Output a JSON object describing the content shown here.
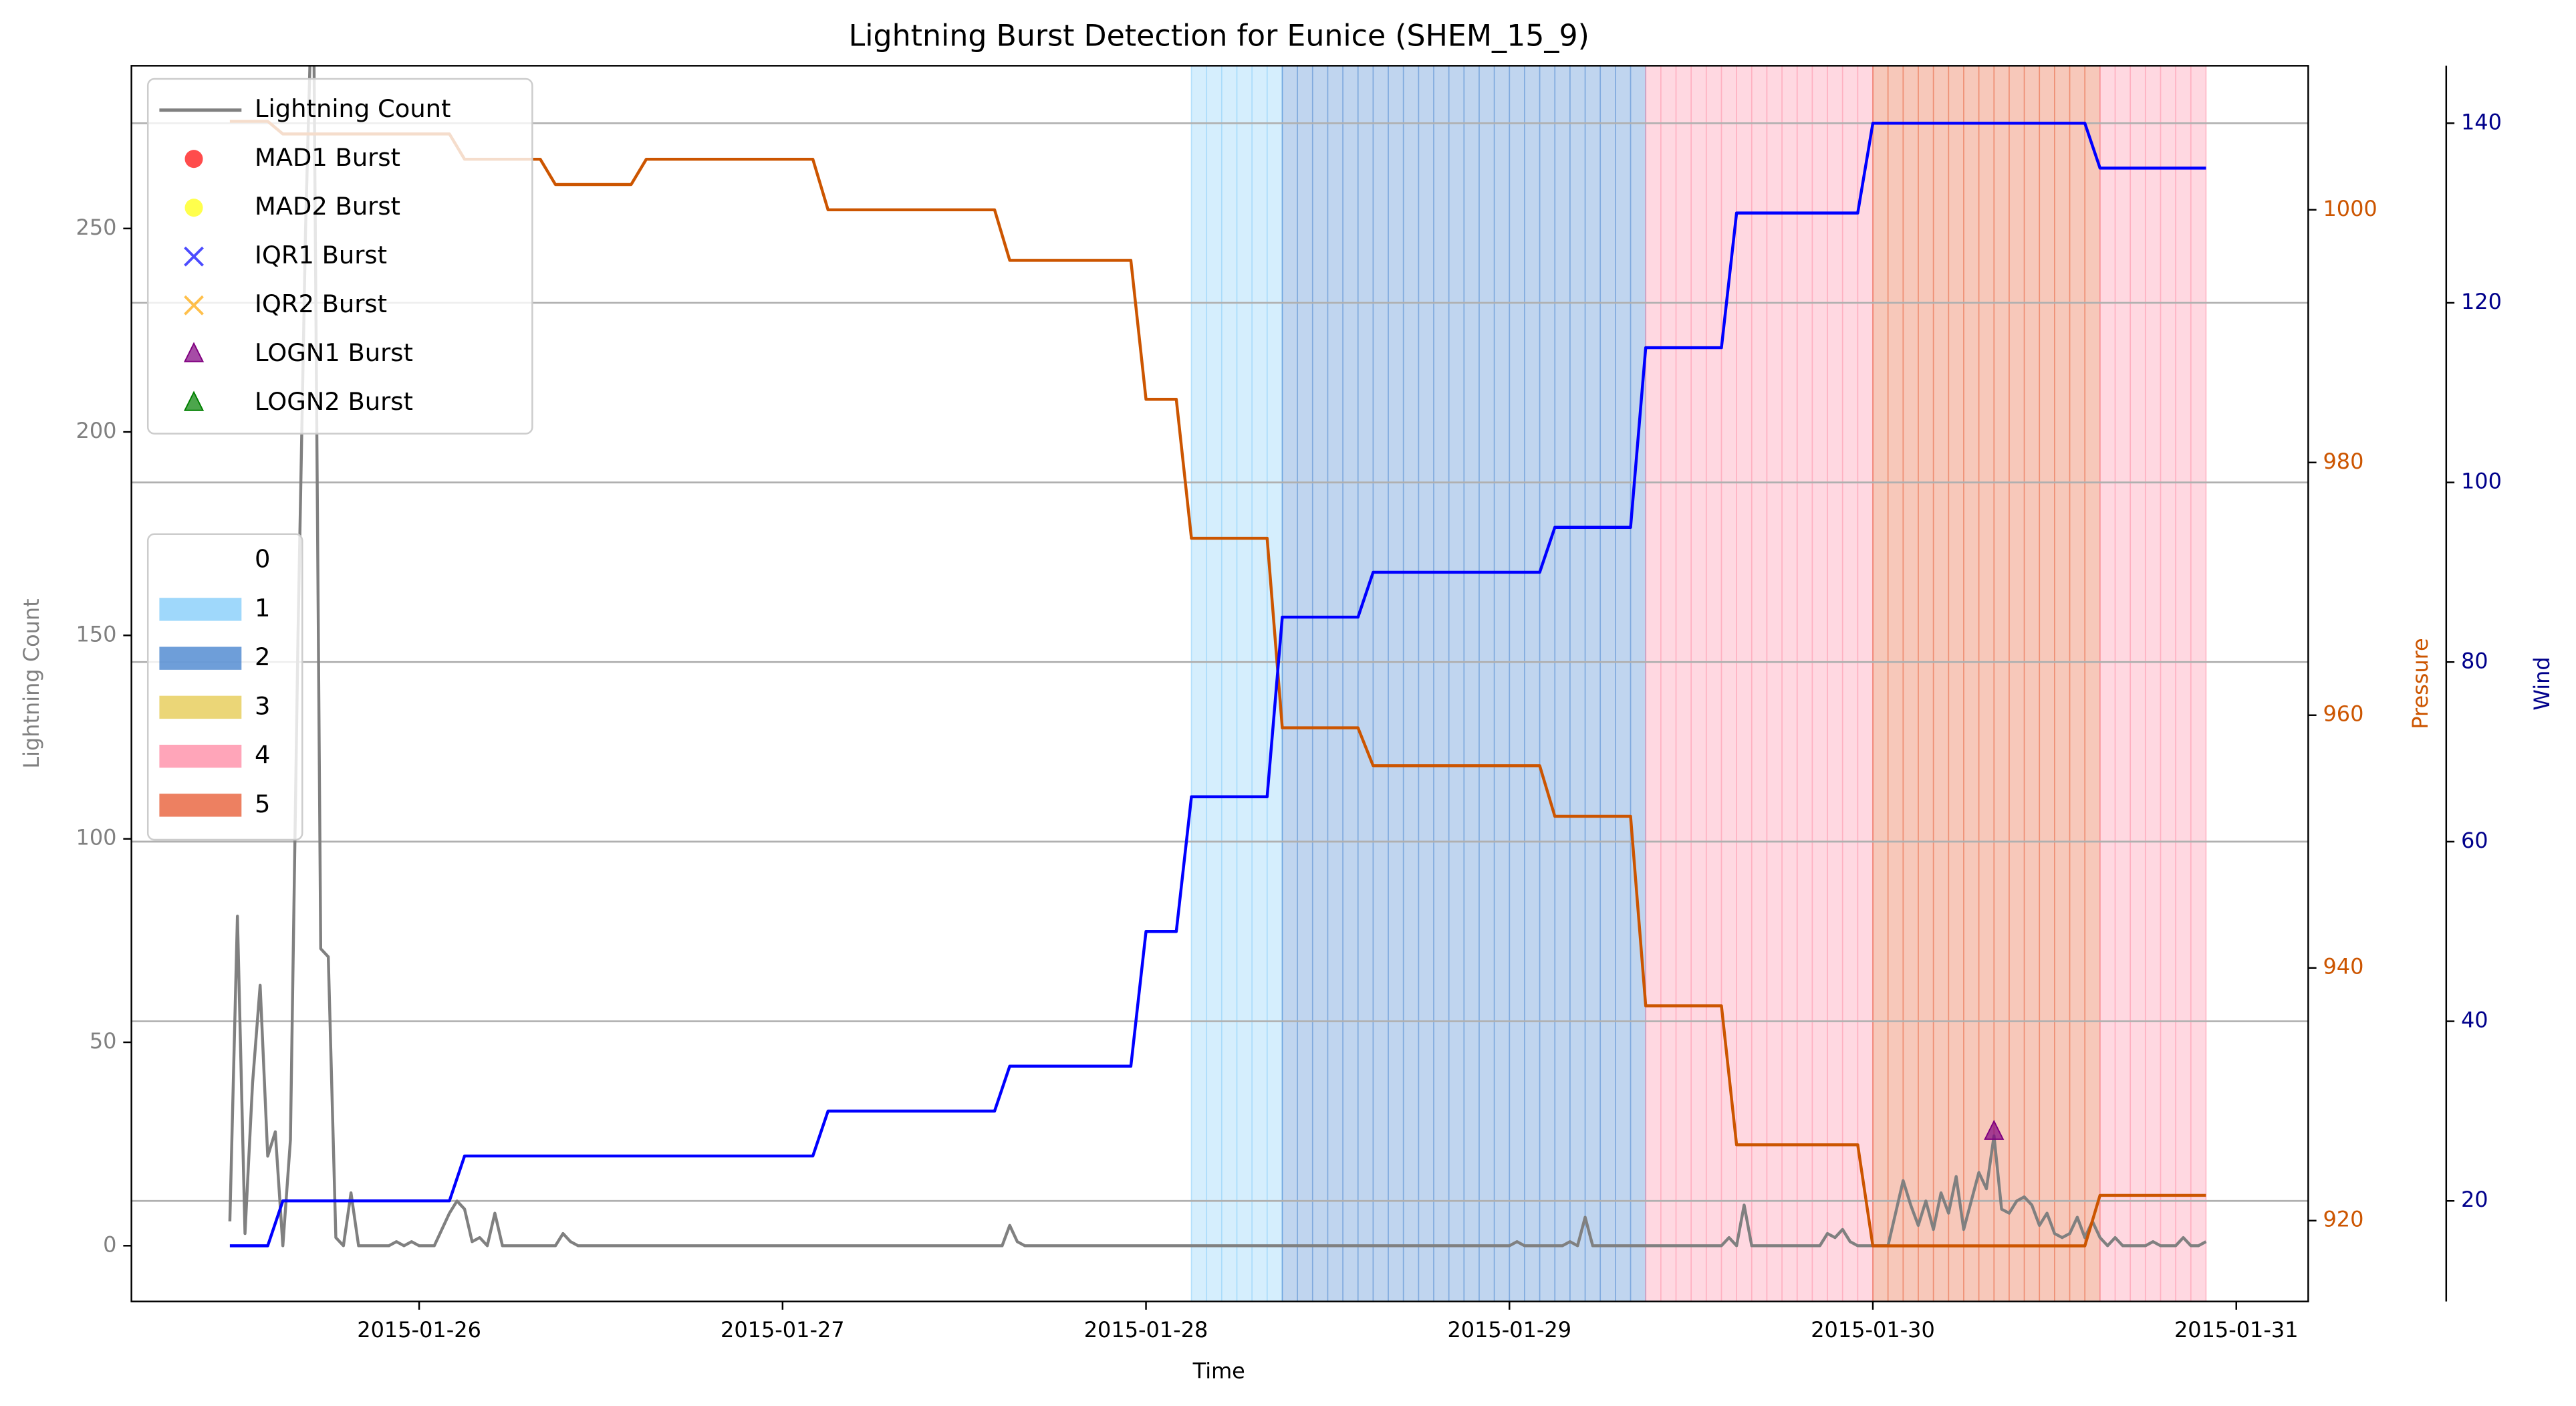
{
  "chart_data": {
    "type": "line",
    "title": "Lightning Burst Detection for Eunice (SHEM_15_9)",
    "xlabel": "Time",
    "ylabel": "Lightning Count",
    "y2label": "Pressure",
    "y3label": "Wind",
    "xlim": [
      "2015-01-25 05:00",
      "2015-01-31 04:45"
    ],
    "xticks": [
      "2015-01-26",
      "2015-01-27",
      "2015-01-28",
      "2015-01-29",
      "2015-01-30",
      "2015-01-31"
    ],
    "ylim": [
      -13.7,
      290
    ],
    "yticks": [
      0,
      50,
      100,
      150,
      200,
      250
    ],
    "y2lim": [
      913.6,
      1011.4
    ],
    "y2ticks": [
      920,
      940,
      960,
      980,
      1000
    ],
    "y3lim": [
      8.8,
      146.4
    ],
    "y3ticks": [
      20,
      40,
      60,
      80,
      100,
      120,
      140
    ],
    "ycolor": "#808080",
    "y2color": "#cc5500",
    "y3color": "#00008b",
    "grid": "y3",
    "legend": "upper left",
    "series": [
      {
        "name": "Lightning Count",
        "color": "#808080",
        "axis": "y",
        "x": [
          "2015-01-25 11:30",
          "2015-01-25 12:00",
          "2015-01-25 12:30",
          "2015-01-25 13:00",
          "2015-01-25 13:30",
          "2015-01-25 14:00",
          "2015-01-25 14:30",
          "2015-01-25 15:00",
          "2015-01-25 15:30",
          "2015-01-25 16:00",
          "2015-01-25 16:30",
          "2015-01-25 17:00",
          "2015-01-25 17:30",
          "2015-01-25 18:00",
          "2015-01-25 18:30",
          "2015-01-25 19:00",
          "2015-01-25 19:30",
          "2015-01-25 20:00",
          "2015-01-25 22:00",
          "2015-01-25 22:30",
          "2015-01-25 23:00",
          "2015-01-25 23:30",
          "2015-01-26 00:00",
          "2015-01-26 01:00",
          "2015-01-26 02:00",
          "2015-01-26 02:30",
          "2015-01-26 03:00",
          "2015-01-26 03:30",
          "2015-01-26 04:00",
          "2015-01-26 04:30",
          "2015-01-26 05:00",
          "2015-01-26 05:30",
          "2015-01-26 09:00",
          "2015-01-26 09:30",
          "2015-01-26 10:00",
          "2015-01-26 10:30",
          "2015-01-27 14:30",
          "2015-01-27 15:00",
          "2015-01-27 15:30",
          "2015-01-27 16:00",
          "2015-01-29 00:00",
          "2015-01-29 00:30",
          "2015-01-29 01:00",
          "2015-01-29 03:30",
          "2015-01-29 04:00",
          "2015-01-29 04:30",
          "2015-01-29 05:00",
          "2015-01-29 05:30",
          "2015-01-29 14:00",
          "2015-01-29 14:30",
          "2015-01-29 15:00",
          "2015-01-29 15:30",
          "2015-01-29 16:00",
          "2015-01-29 20:30",
          "2015-01-29 21:00",
          "2015-01-29 21:30",
          "2015-01-29 22:00",
          "2015-01-29 22:30",
          "2015-01-29 23:00",
          "2015-01-30 01:00",
          "2015-01-30 01:30",
          "2015-01-30 02:00",
          "2015-01-30 02:30",
          "2015-01-30 03:00",
          "2015-01-30 03:30",
          "2015-01-30 04:00",
          "2015-01-30 04:30",
          "2015-01-30 05:00",
          "2015-01-30 05:30",
          "2015-01-30 06:00",
          "2015-01-30 06:30",
          "2015-01-30 07:00",
          "2015-01-30 07:30",
          "2015-01-30 08:00",
          "2015-01-30 08:30",
          "2015-01-30 09:00",
          "2015-01-30 09:30",
          "2015-01-30 10:00",
          "2015-01-30 10:30",
          "2015-01-30 11:00",
          "2015-01-30 11:30",
          "2015-01-30 12:00",
          "2015-01-30 12:30",
          "2015-01-30 13:00",
          "2015-01-30 13:30",
          "2015-01-30 14:00",
          "2015-01-30 14:30",
          "2015-01-30 15:00",
          "2015-01-30 15:30",
          "2015-01-30 16:00",
          "2015-01-30 16:30",
          "2015-01-30 18:00",
          "2015-01-30 18:30",
          "2015-01-30 19:00",
          "2015-01-30 20:00",
          "2015-01-30 20:30",
          "2015-01-30 21:00",
          "2015-01-30 21:30",
          "2015-01-30 22:00"
        ],
        "values": [
          6,
          81,
          3,
          40,
          64,
          22,
          28,
          0,
          26,
          150,
          250,
          320,
          73,
          71,
          2,
          0,
          13,
          0,
          0,
          1,
          0,
          1,
          0,
          0,
          8,
          11,
          9,
          1,
          2,
          0,
          8,
          0,
          0,
          3,
          1,
          0,
          0,
          5,
          1,
          0,
          0,
          1,
          0,
          0,
          1,
          0,
          7,
          0,
          0,
          2,
          0,
          10,
          0,
          0,
          3,
          2,
          4,
          1,
          0,
          0,
          8,
          16,
          10,
          5,
          11,
          4,
          13,
          8,
          17,
          4,
          11,
          18,
          14,
          27,
          9,
          8,
          11,
          12,
          10,
          5,
          8,
          3,
          2,
          3,
          7,
          2,
          6,
          2,
          0,
          2,
          0,
          0,
          1,
          0,
          0,
          2,
          0,
          0,
          1
        ]
      },
      {
        "color": "#cc5500",
        "axis": "y2",
        "x": [
          "2015-01-25 11:30",
          "2015-01-25 14:00",
          "2015-01-25 15:00",
          "2015-01-26 02:00",
          "2015-01-26 03:00",
          "2015-01-26 08:00",
          "2015-01-26 09:00",
          "2015-01-26 14:00",
          "2015-01-26 15:00",
          "2015-01-27 02:00",
          "2015-01-27 03:00",
          "2015-01-27 14:00",
          "2015-01-27 15:00",
          "2015-01-27 23:00",
          "2015-01-28 00:00",
          "2015-01-28 02:00",
          "2015-01-28 03:00",
          "2015-01-28 08:00",
          "2015-01-28 09:00",
          "2015-01-28 14:00",
          "2015-01-28 15:00",
          "2015-01-29 02:00",
          "2015-01-29 03:00",
          "2015-01-29 08:00",
          "2015-01-29 09:00",
          "2015-01-29 14:00",
          "2015-01-29 15:00",
          "2015-01-29 23:00",
          "2015-01-30 00:00",
          "2015-01-30 14:00",
          "2015-01-30 15:00",
          "2015-01-30 22:00"
        ],
        "values": [
          1007,
          1007,
          1006,
          1006,
          1004,
          1004,
          1002,
          1002,
          1004,
          1004,
          1000,
          1000,
          996,
          996,
          985,
          985,
          974,
          974,
          959,
          959,
          956,
          956,
          952,
          952,
          937,
          937,
          926,
          926,
          918,
          918,
          922,
          922
        ]
      },
      {
        "color": "#0000ff",
        "axis": "y3",
        "x": [
          "2015-01-25 11:30",
          "2015-01-25 14:00",
          "2015-01-25 15:00",
          "2015-01-26 02:00",
          "2015-01-26 03:00",
          "2015-01-27 02:00",
          "2015-01-27 03:00",
          "2015-01-27 14:00",
          "2015-01-27 15:00",
          "2015-01-27 23:00",
          "2015-01-28 00:00",
          "2015-01-28 02:00",
          "2015-01-28 03:00",
          "2015-01-28 08:00",
          "2015-01-28 09:00",
          "2015-01-28 14:00",
          "2015-01-28 15:00",
          "2015-01-29 02:00",
          "2015-01-29 03:00",
          "2015-01-29 08:00",
          "2015-01-29 09:00",
          "2015-01-29 14:00",
          "2015-01-29 15:00",
          "2015-01-29 23:00",
          "2015-01-30 00:00",
          "2015-01-30 14:00",
          "2015-01-30 15:00",
          "2015-01-30 22:00"
        ],
        "values": [
          15,
          15,
          20,
          20,
          25,
          25,
          30,
          30,
          35,
          35,
          50,
          50,
          65,
          65,
          85,
          85,
          90,
          90,
          95,
          95,
          115,
          115,
          130,
          130,
          140,
          140,
          135,
          135
        ]
      },
      {
        "name": "MAD1 Burst",
        "type": "scatter",
        "marker": "o",
        "color": "#ff0000",
        "axis": "y",
        "x": [],
        "values": []
      },
      {
        "name": "MAD2 Burst",
        "type": "scatter",
        "marker": "o",
        "color": "#ffff00",
        "axis": "y",
        "x": [],
        "values": []
      },
      {
        "name": "IQR1 Burst",
        "type": "scatter",
        "marker": "x",
        "color": "#0000ff",
        "axis": "y",
        "x": [],
        "values": []
      },
      {
        "name": "IQR2 Burst",
        "type": "scatter",
        "marker": "x",
        "color": "#ffa500",
        "axis": "y",
        "x": [],
        "values": []
      },
      {
        "name": "LOGN1 Burst",
        "type": "scatter",
        "marker": "^",
        "color": "#800080",
        "axis": "y",
        "x": [
          "2015-01-30 08:00"
        ],
        "values": [
          28
        ]
      },
      {
        "name": "LOGN2 Burst",
        "type": "scatter",
        "marker": "^",
        "color": "#008000",
        "axis": "y",
        "x": [],
        "values": []
      }
    ],
    "band_legend": {
      "loc": "center left",
      "labels": [
        "0",
        "1",
        "2",
        "3",
        "4",
        "5"
      ],
      "colors": [
        null,
        "#87cefa",
        "#4a86d0",
        "#e6cc55",
        "#ff8fa8",
        "#e8603a"
      ]
    },
    "bands": [
      {
        "category": 1,
        "start": "2015-01-28 03:00",
        "end": "2015-01-28 09:00"
      },
      {
        "category": 2,
        "start": "2015-01-28 09:00",
        "end": "2015-01-29 09:00"
      },
      {
        "category": 4,
        "start": "2015-01-29 09:00",
        "end": "2015-01-30 00:00"
      },
      {
        "category": 5,
        "start": "2015-01-30 00:00",
        "end": "2015-01-30 15:00"
      },
      {
        "category": 4,
        "start": "2015-01-30 15:00",
        "end": "2015-01-30 22:00"
      }
    ]
  }
}
